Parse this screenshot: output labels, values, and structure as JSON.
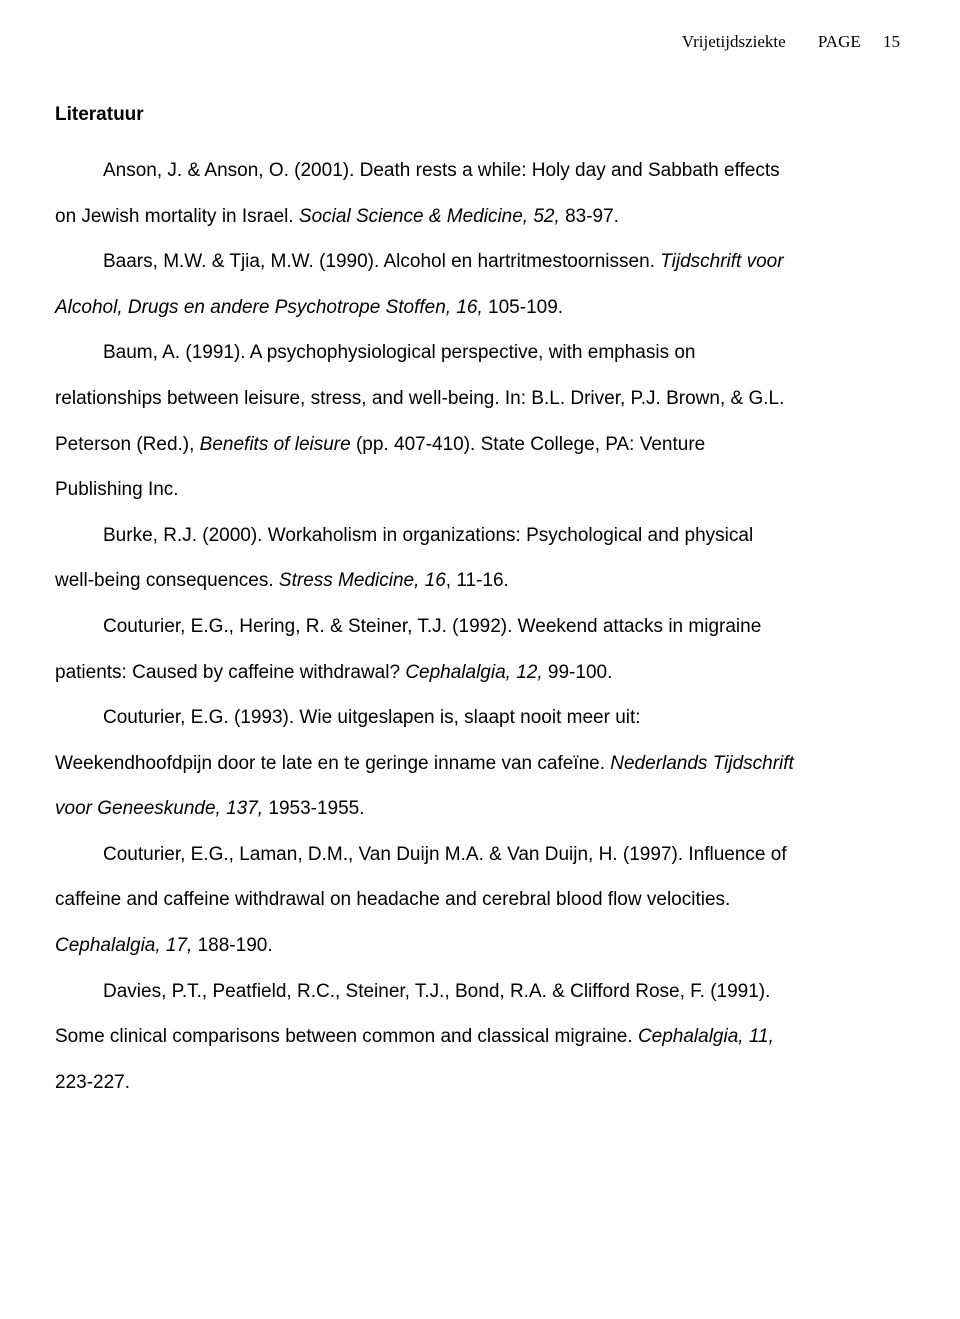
{
  "header": {
    "running_head": "Vrijetijdsziekte",
    "page_label": "PAGE",
    "page_number": "15"
  },
  "section_title": "Literatuur",
  "references": [
    {
      "indented": true,
      "runs": [
        {
          "t": "Anson, J. & Anson, O. (2001). Death rests a while: Holy day and Sabbath effects "
        }
      ]
    },
    {
      "indented": false,
      "runs": [
        {
          "t": "on Jewish mortality in Israel. "
        },
        {
          "t": "Social Science & Medicine, 52, ",
          "i": true
        },
        {
          "t": "83-97."
        }
      ]
    },
    {
      "indented": true,
      "runs": [
        {
          "t": "Baars, M.W. & Tjia, M.W. (1990). Alcohol en hartritmestoornissen. "
        },
        {
          "t": "Tijdschrift voor ",
          "i": true
        }
      ]
    },
    {
      "indented": false,
      "runs": [
        {
          "t": "Alcohol, Drugs en andere Psychotrope Stoffen, 16, ",
          "i": true
        },
        {
          "t": "105-109."
        }
      ]
    },
    {
      "indented": true,
      "runs": [
        {
          "t": "Baum, A. (1991). A psychophysiological perspective, with emphasis on "
        }
      ]
    },
    {
      "indented": false,
      "runs": [
        {
          "t": "relationships between leisure, stress, and well-being. In: B.L. Driver, P.J. Brown, & G.L. "
        }
      ]
    },
    {
      "indented": false,
      "runs": [
        {
          "t": "Peterson (Red.), "
        },
        {
          "t": "Benefits of leisure ",
          "i": true
        },
        {
          "t": "(pp. 407-410). State College, PA: Venture "
        }
      ]
    },
    {
      "indented": false,
      "runs": [
        {
          "t": "Publishing Inc."
        }
      ]
    },
    {
      "indented": true,
      "runs": [
        {
          "t": "Burke, R.J. (2000). Workaholism in organizations: Psychological and physical "
        }
      ]
    },
    {
      "indented": false,
      "runs": [
        {
          "t": "well-being consequences. "
        },
        {
          "t": "Stress Medicine, 16",
          "i": true
        },
        {
          "t": ", 11-16."
        }
      ]
    },
    {
      "indented": true,
      "runs": [
        {
          "t": "Couturier, E.G., Hering, R. & Steiner, T.J. (1992). Weekend attacks in migraine "
        }
      ]
    },
    {
      "indented": false,
      "runs": [
        {
          "t": "patients: Caused by caffeine withdrawal? "
        },
        {
          "t": "Cephalalgia, 12, ",
          "i": true
        },
        {
          "t": "99-100."
        }
      ]
    },
    {
      "indented": true,
      "runs": [
        {
          "t": "Couturier, E.G. (1993). Wie uitgeslapen is, slaapt nooit meer uit: "
        }
      ]
    },
    {
      "indented": false,
      "runs": [
        {
          "t": "Weekendhoofdpijn door te late en te geringe inname van cafeïne. "
        },
        {
          "t": "Nederlands Tijdschrift ",
          "i": true
        }
      ]
    },
    {
      "indented": false,
      "runs": [
        {
          "t": "voor Geneeskunde, 137, ",
          "i": true
        },
        {
          "t": "1953-1955."
        }
      ]
    },
    {
      "indented": true,
      "runs": [
        {
          "t": "Couturier, E.G., Laman, D.M., Van Duijn M.A. & Van Duijn, H. (1997). Influence of "
        }
      ]
    },
    {
      "indented": false,
      "runs": [
        {
          "t": "caffeine and caffeine withdrawal on headache and cerebral blood flow velocities. "
        }
      ]
    },
    {
      "indented": false,
      "runs": [
        {
          "t": "Cephalalgia, 17, ",
          "i": true
        },
        {
          "t": "188-190."
        }
      ]
    },
    {
      "indented": true,
      "runs": [
        {
          "t": "Davies, P.T., Peatfield, R.C., Steiner, T.J., Bond, R.A. & Clifford Rose, F. (1991). "
        }
      ]
    },
    {
      "indented": false,
      "runs": [
        {
          "t": "Some clinical comparisons between common and classical migraine. "
        },
        {
          "t": "Cephalalgia, 11, ",
          "i": true
        }
      ]
    },
    {
      "indented": false,
      "runs": [
        {
          "t": "223-227."
        }
      ]
    }
  ]
}
